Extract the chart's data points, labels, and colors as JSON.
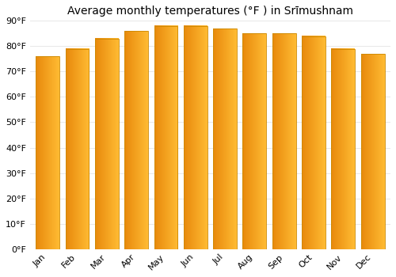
{
  "title": "Average monthly temperatures (°F ) in Srīmushnam",
  "months": [
    "Jan",
    "Feb",
    "Mar",
    "Apr",
    "May",
    "Jun",
    "Jul",
    "Aug",
    "Sep",
    "Oct",
    "Nov",
    "Dec"
  ],
  "temperatures": [
    76,
    79,
    83,
    86,
    88,
    88,
    87,
    85,
    85,
    84,
    79,
    77
  ],
  "bar_color_main": "#FFBB33",
  "bar_color_left": "#E8890C",
  "bar_color_top": "#CC7700",
  "bar_edge_color": "#CC8800",
  "ylim": [
    0,
    90
  ],
  "yticks": [
    0,
    10,
    20,
    30,
    40,
    50,
    60,
    70,
    80,
    90
  ],
  "ytick_labels": [
    "0°F",
    "10°F",
    "20°F",
    "30°F",
    "40°F",
    "50°F",
    "60°F",
    "70°F",
    "80°F",
    "90°F"
  ],
  "grid_color": "#E8E8E8",
  "background_color": "#FFFFFF",
  "title_fontsize": 10,
  "tick_fontsize": 8,
  "bar_width": 0.8
}
